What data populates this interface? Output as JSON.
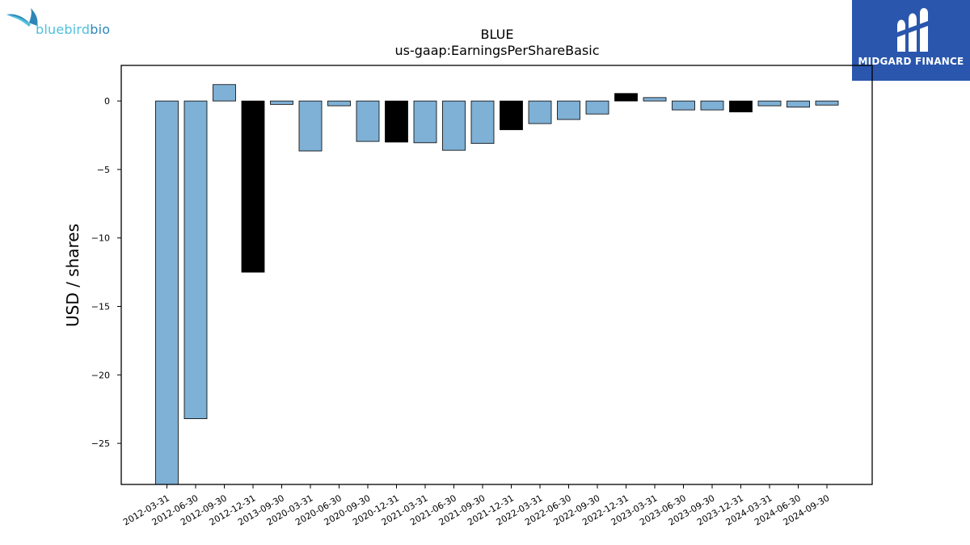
{
  "logos": {
    "company": {
      "name_part1": "bluebird",
      "name_part2": "bio",
      "icon": "bluebird-icon",
      "color": "#4fc0dd"
    },
    "publisher": {
      "name": "MIDGARD FINANCE",
      "icon": "midgard-mark-icon",
      "background": "#2a57ad"
    }
  },
  "chart_data": {
    "type": "bar",
    "title": "BLUE",
    "subtitle": "us-gaap:EarningsPerShareBasic",
    "xlabel": "",
    "ylabel": "USD / shares",
    "ylim": [
      -28,
      2.6
    ],
    "yticks": [
      0,
      -5,
      -10,
      -15,
      -20,
      -25
    ],
    "grid": false,
    "colors": {
      "quarter": "#7fb0d5",
      "year_end": "#000000",
      "edge": "#000000"
    },
    "categories": [
      "2012-03-31",
      "2012-06-30",
      "2012-09-30",
      "2012-12-31",
      "2013-09-30",
      "2020-03-31",
      "2020-06-30",
      "2020-09-30",
      "2020-12-31",
      "2021-03-31",
      "2021-06-30",
      "2021-09-30",
      "2021-12-31",
      "2022-03-31",
      "2022-06-30",
      "2022-09-30",
      "2022-12-31",
      "2023-03-31",
      "2023-06-30",
      "2023-09-30",
      "2023-12-31",
      "2024-03-31",
      "2024-06-30",
      "2024-09-30"
    ],
    "values": [
      -28.0,
      -23.2,
      1.2,
      -12.5,
      -0.25,
      -3.65,
      -0.35,
      -2.95,
      -3.0,
      -3.05,
      -3.6,
      -3.1,
      -2.1,
      -1.65,
      -1.35,
      -0.95,
      0.55,
      0.25,
      -0.65,
      -0.65,
      -0.8,
      -0.35,
      -0.45,
      -0.3
    ],
    "kinds": [
      "quarter",
      "quarter",
      "quarter",
      "year_end",
      "quarter",
      "quarter",
      "quarter",
      "quarter",
      "year_end",
      "quarter",
      "quarter",
      "quarter",
      "year_end",
      "quarter",
      "quarter",
      "quarter",
      "year_end",
      "quarter",
      "quarter",
      "quarter",
      "year_end",
      "quarter",
      "quarter",
      "quarter"
    ]
  }
}
